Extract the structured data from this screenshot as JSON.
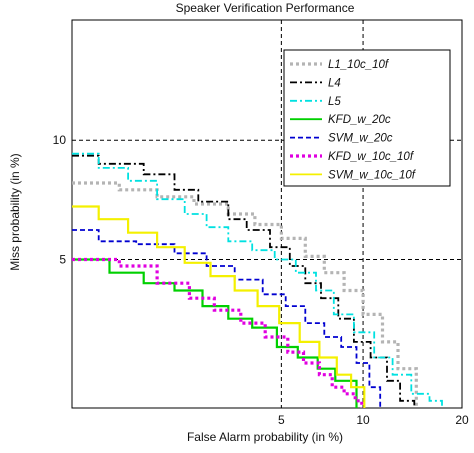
{
  "chart_data": {
    "type": "line",
    "title": "Speaker Verification Performance",
    "xlabel": "False Alarm probability (in %)",
    "ylabel": "Miss probability (in %)",
    "xlim": [
      0.5,
      20
    ],
    "ylim": [
      1.8,
      18
    ],
    "x_scale": "normal-deviate",
    "y_scale": "normal-deviate",
    "grid": true,
    "legend_position": "top-right",
    "x_ticks": [
      5,
      10,
      20
    ],
    "x_tick_labels": [
      "5",
      "10",
      "20"
    ],
    "y_ticks": [
      5,
      10
    ],
    "y_tick_labels": [
      "5",
      "10"
    ],
    "series": [
      {
        "name": "L1_10c_10f",
        "color": "#b4b4b4",
        "dash": "dotted",
        "x": [
          0.5,
          0.9,
          1.4,
          2.1,
          3.0,
          3.9,
          5.0,
          6.2,
          7.3,
          8.6,
          10.0,
          11.6,
          13.0,
          14.8
        ],
        "y": [
          7.9,
          7.6,
          7.3,
          7.0,
          6.6,
          6.2,
          5.7,
          5.1,
          4.6,
          4.1,
          3.5,
          2.9,
          2.4,
          1.8
        ]
      },
      {
        "name": "L4",
        "color": "#000000",
        "dash": "dashdot",
        "x": [
          0.5,
          0.7,
          1.2,
          1.7,
          2.2,
          3.0,
          3.6,
          4.5,
          5.4,
          6.2,
          7.1,
          8.2,
          9.3,
          10.6,
          12.0,
          13.2,
          14.6
        ],
        "y": [
          9.2,
          8.8,
          8.3,
          7.6,
          7.1,
          6.4,
          6.0,
          5.4,
          4.8,
          4.3,
          3.9,
          3.4,
          2.9,
          2.6,
          2.2,
          1.9,
          1.8
        ]
      },
      {
        "name": "L5",
        "color": "#00e1e1",
        "dash": "dashdot",
        "x": [
          0.5,
          0.7,
          1.0,
          1.4,
          1.9,
          2.4,
          3.0,
          3.8,
          4.7,
          5.7,
          6.8,
          7.9,
          9.3,
          10.9,
          12.5,
          14.3,
          16.2,
          17.6
        ],
        "y": [
          9.3,
          8.6,
          8.0,
          7.2,
          6.6,
          6.1,
          5.6,
          5.3,
          5.0,
          4.6,
          4.1,
          3.5,
          3.1,
          2.6,
          2.3,
          2.0,
          1.9,
          1.8
        ]
      },
      {
        "name": "KFD_w_20c",
        "color": "#00d000",
        "dash": "solid",
        "x": [
          0.5,
          0.8,
          1.2,
          1.7,
          2.3,
          3.0,
          3.8,
          4.8,
          5.8,
          6.9,
          8.0,
          8.9,
          9.5
        ],
        "y": [
          5.0,
          4.6,
          4.3,
          4.1,
          3.7,
          3.4,
          3.2,
          2.8,
          2.6,
          2.4,
          2.2,
          2.2,
          1.8
        ]
      },
      {
        "name": "SVM_w_20c",
        "color": "#0000d0",
        "dash": "dashed",
        "x": [
          0.5,
          0.7,
          1.1,
          1.7,
          2.4,
          3.2,
          4.2,
          5.2,
          6.2,
          7.3,
          8.4,
          9.5,
          10.5,
          11.4
        ],
        "y": [
          6.0,
          5.6,
          5.5,
          5.2,
          4.8,
          4.4,
          4.0,
          3.7,
          3.3,
          3.0,
          2.8,
          2.5,
          2.1,
          1.8
        ]
      },
      {
        "name": "KFD_w_10c_10f",
        "color": "#e000e0",
        "dash": "dotted",
        "x": [
          0.5,
          0.9,
          1.4,
          2.0,
          2.6,
          3.4,
          4.3,
          5.3,
          6.1,
          7.0,
          7.8,
          8.6,
          9.4,
          9.9
        ],
        "y": [
          5.0,
          4.8,
          4.3,
          3.9,
          3.6,
          3.3,
          3.0,
          2.7,
          2.5,
          2.3,
          2.1,
          2.0,
          1.9,
          1.8
        ]
      },
      {
        "name": "SVM_w_10c_10f",
        "color": "#f4f000",
        "dash": "solid",
        "x": [
          0.5,
          0.7,
          1.0,
          1.4,
          1.9,
          2.5,
          3.2,
          4.0,
          4.9,
          5.9,
          7.0,
          8.1,
          9.1,
          10.1
        ],
        "y": [
          6.9,
          6.4,
          5.9,
          5.4,
          4.9,
          4.5,
          4.1,
          3.7,
          3.3,
          2.9,
          2.6,
          2.3,
          2.1,
          1.8
        ]
      }
    ]
  }
}
